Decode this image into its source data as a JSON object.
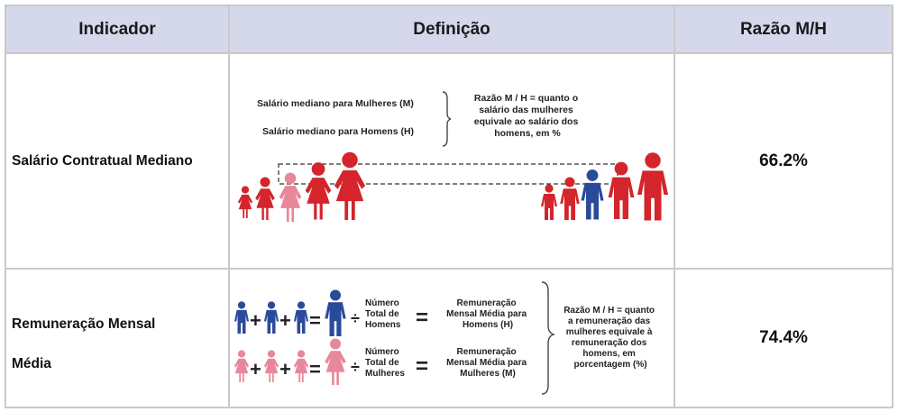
{
  "table": {
    "headers": {
      "indicator": "Indicador",
      "definition": "Definição",
      "ratio": "Razão M/H"
    },
    "rows": [
      {
        "indicator": "Salário Contratual Mediano",
        "ratio": "66.2%",
        "definition": {
          "women_label": "Salário mediano para Mulheres (M)",
          "men_label": "Salário mediano para Homens (H)",
          "note": [
            "Razão M / H = quanto o",
            "salário das mulheres",
            "equivale ao salário dos",
            "homens, em %"
          ]
        }
      },
      {
        "indicator_line1": "Remuneração Mensal",
        "indicator_line2": "Média",
        "ratio": "74.4%",
        "definition": {
          "men_count": [
            "Número",
            "Total de",
            "Homens"
          ],
          "women_count": [
            "Número",
            "Total de",
            "Mulheres"
          ],
          "men_result": [
            "Remuneração",
            "Mensal Média para",
            "Homens (H)"
          ],
          "women_result": [
            "Remuneração",
            "Mensal Média para",
            "Mulheres (M)"
          ],
          "note": [
            "Razão M / H = quanto",
            "a remuneração das",
            "mulheres equivale à",
            "remuneração dos",
            "homens, em",
            "porcentagem (%)"
          ]
        }
      }
    ]
  },
  "colors": {
    "header_bg": "#d5d7ea",
    "red": "#d3252b",
    "pink": "#e8879a",
    "blue": "#2a4a9a",
    "border": "#c9c9c9"
  },
  "icons": [
    "person-icon",
    "plus-icon",
    "equals-icon",
    "divide-icon",
    "brace-icon"
  ]
}
